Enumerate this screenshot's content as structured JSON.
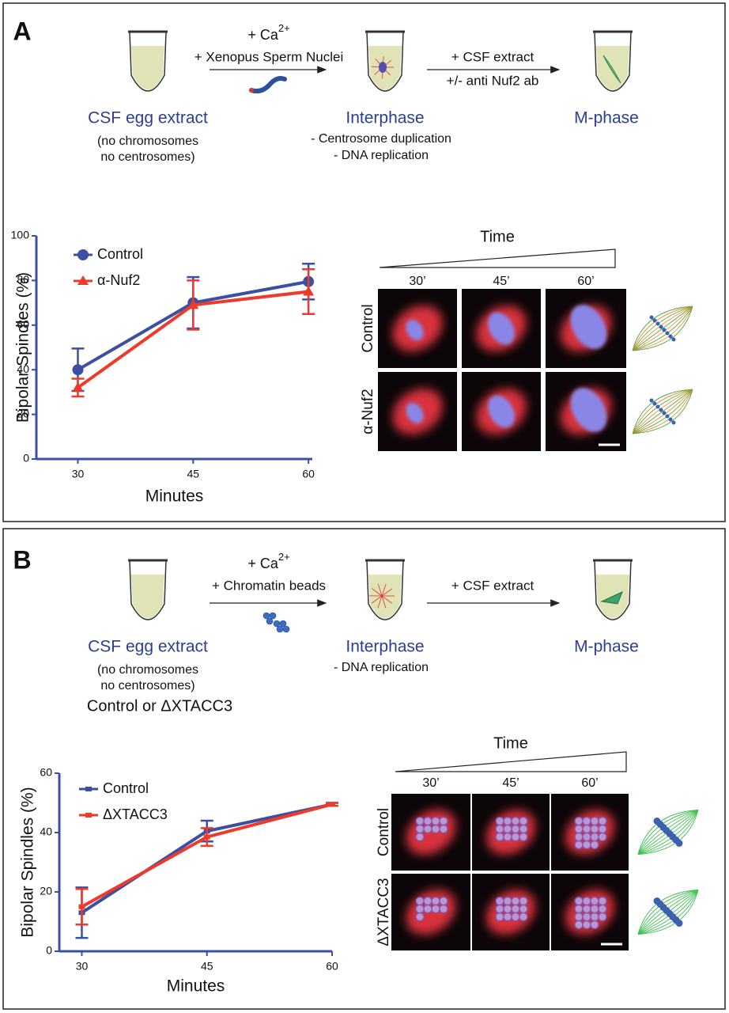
{
  "panels": [
    {
      "label": "A",
      "step1": "CSF egg extract",
      "step1_notes": [
        "(no chromosomes",
        "no centrosomes)"
      ],
      "arrow1_prefix": "+ Ca",
      "arrow1_sup": "2+",
      "arrow1_line2": "+ Xenopus Sperm Nuclei",
      "step2": "Interphase",
      "step2_notes": [
        "- Centrosome duplication",
        "- DNA replication"
      ],
      "arrow2_top": "+ CSF extract",
      "arrow2_bottom": "+/- anti Nuf2 ab",
      "step3": "M-phase",
      "time_label": "Time",
      "time_points": [
        "30’",
        "45’",
        "60’"
      ],
      "rows": [
        "Control",
        "α-Nuf2"
      ]
    },
    {
      "label": "B",
      "step1": "CSF egg extract",
      "step1_notes": [
        "(no chromosomes",
        "no centrosomes)"
      ],
      "step1_extra": "Control or ΔXTACC3",
      "arrow1_prefix": "+ Ca",
      "arrow1_sup": "2+",
      "arrow1_line2": "+ Chromatin beads",
      "step2": "Interphase",
      "step2_notes": [
        "- DNA replication"
      ],
      "arrow2_top": "+ CSF extract",
      "step3": "M-phase",
      "time_label": "Time",
      "time_points": [
        "30’",
        "45’",
        "60’"
      ],
      "rows": [
        "Control",
        "ΔXTACC3"
      ]
    }
  ],
  "chart_data": [
    {
      "type": "line",
      "x_label": "Minutes",
      "y_label": "Bipolar Spindles (%)",
      "x": [
        30,
        45,
        60
      ],
      "xlim": [
        24.6,
        60.5
      ],
      "xticks": [
        30,
        45,
        60
      ],
      "ylim": [
        0,
        100
      ],
      "yticks": [
        0,
        20,
        40,
        60,
        80,
        100
      ],
      "series": [
        {
          "name": "Control",
          "color": "#3d4fa0",
          "marker": "circle",
          "values": [
            40,
            70,
            79.5
          ],
          "errors": [
            9.5,
            11.5,
            8
          ]
        },
        {
          "name": "α-Nuf2",
          "color": "#ee3a2a",
          "marker": "triangle",
          "values": [
            32,
            69,
            75
          ],
          "errors": [
            4,
            11,
            10
          ]
        }
      ]
    },
    {
      "type": "line",
      "x_label": "Minutes",
      "y_label": "Bipolar Spindles (%)",
      "x": [
        30,
        45,
        60
      ],
      "xlim": [
        27.3,
        60
      ],
      "xticks": [
        30,
        45,
        60
      ],
      "ylim": [
        0,
        60
      ],
      "yticks": [
        0,
        20,
        40,
        60
      ],
      "series": [
        {
          "name": "Control",
          "color": "#3d4fa0",
          "marker": "square",
          "values": [
            13,
            40.5,
            49.5
          ],
          "errors": [
            8.5,
            3.5,
            0.5
          ]
        },
        {
          "name": "ΔXTACC3",
          "color": "#ee3a2a",
          "marker": "square",
          "values": [
            15,
            38.5,
            49.5
          ],
          "errors": [
            6,
            3,
            0.5
          ]
        }
      ]
    }
  ]
}
